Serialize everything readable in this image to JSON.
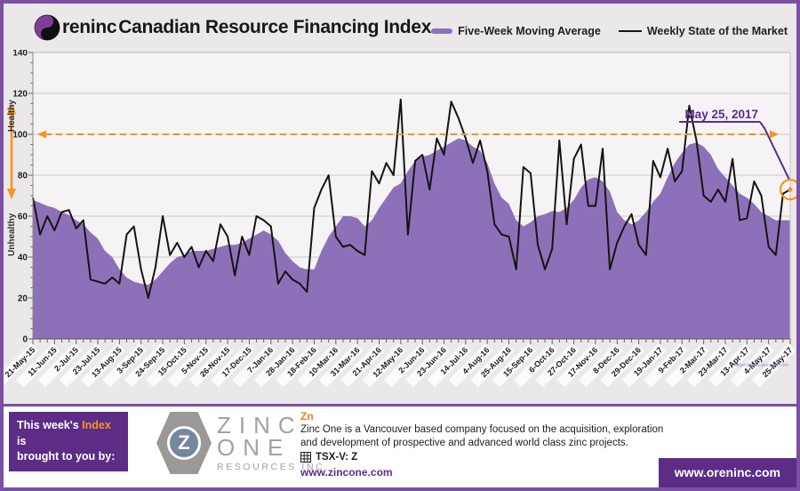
{
  "header": {
    "brand_suffix": "reninc",
    "title": " Canadian Resource Financing Index",
    "legend": [
      {
        "label": "Five-Week Moving Average",
        "color": "#8d71b8"
      },
      {
        "label": "Weekly State of the Market",
        "color": "#141414"
      }
    ]
  },
  "chart_data": {
    "type": "area",
    "title": "Oreninc Canadian Resource Financing Index",
    "ylim": [
      0,
      140
    ],
    "ytick_step": 20,
    "y_minor_step": 5,
    "grid": true,
    "weeks_per_tick": 3,
    "x_tick_labels": [
      "21-May-15",
      "11-Jun-15",
      "2-Jul-15",
      "23-Jul-15",
      "13-Aug-15",
      "3-Sep-15",
      "24-Sep-15",
      "15-Oct-15",
      "5-Nov-15",
      "26-Nov-15",
      "17-Dec-15",
      "7-Jan-16",
      "28-Jan-16",
      "18-Feb-16",
      "10-Mar-16",
      "31-Mar-16",
      "21-Apr-16",
      "12-May-16",
      "2-Jun-16",
      "23-Jun-16",
      "14-Jul-16",
      "4-Aug-16",
      "25-Aug-16",
      "15-Sep-16",
      "6-Oct-16",
      "27-Oct-16",
      "17-Nov-16",
      "8-Dec-16",
      "29-Dec-16",
      "19-Jan-17",
      "9-Feb-17",
      "2-Mar-17",
      "23-Mar-17",
      "13-Apr-17",
      "4-May-17",
      "25-May-17"
    ],
    "reference_line": {
      "value": 100,
      "color": "#f7941e",
      "style": "dashed"
    },
    "left_axis_labels": {
      "high": "Healthy",
      "low": "Unhealthy",
      "arrow_color": "#f7941e"
    },
    "series": [
      {
        "name": "Five-Week Moving Average",
        "type": "area",
        "color": "#8d71b8",
        "values": [
          68,
          66.5,
          65,
          64,
          62,
          60.5,
          58,
          56,
          52,
          49,
          43,
          40,
          34,
          30,
          28,
          27,
          26.5,
          29,
          33,
          37,
          40,
          41,
          43,
          43,
          43,
          44,
          45,
          46,
          46,
          47,
          49,
          51,
          53,
          51,
          48,
          42,
          38,
          35,
          34,
          34,
          43,
          50,
          55,
          60,
          60,
          59,
          55,
          58,
          64,
          69,
          74,
          76,
          82,
          87,
          89,
          90,
          92,
          94,
          96,
          98,
          97,
          94,
          92,
          86,
          76,
          69,
          66,
          58,
          55,
          57,
          60,
          61,
          62.5,
          62,
          64,
          68,
          74,
          78,
          79,
          77,
          72,
          62,
          58,
          56,
          58,
          62,
          67,
          71,
          79,
          86,
          91,
          95,
          96,
          94,
          90,
          83,
          79,
          75,
          71,
          69,
          66,
          62,
          60,
          58,
          58,
          58
        ]
      },
      {
        "name": "Weekly State of the Market",
        "type": "line",
        "color": "#141414",
        "values": [
          69,
          51,
          60,
          53,
          62,
          63,
          54,
          58,
          29,
          28,
          27,
          30,
          27,
          51,
          55,
          34,
          20,
          35,
          60,
          41,
          47,
          40,
          45,
          35,
          43,
          38,
          56,
          50,
          31,
          50,
          41,
          60,
          58,
          55,
          27,
          33,
          29,
          27,
          23,
          64,
          73,
          80,
          50,
          45,
          46,
          43,
          41,
          82,
          76,
          86,
          80,
          117,
          51,
          87,
          90,
          73,
          98,
          90,
          116,
          108,
          98,
          86,
          97,
          82,
          56,
          51,
          50,
          34,
          84,
          81,
          46,
          34,
          44,
          97,
          56,
          88,
          95,
          65,
          65,
          93,
          34,
          47,
          55,
          61,
          46,
          41,
          87,
          79,
          93,
          77,
          82,
          114,
          97,
          70,
          67,
          73,
          67,
          88,
          58,
          59,
          77,
          70,
          45,
          41,
          71,
          73
        ]
      }
    ],
    "annotation": {
      "label": "May 25, 2017",
      "week_index": 105,
      "value": 73,
      "color": "#5b2d8e",
      "highlight_color": "#f7941e"
    },
    "watermark": "https://www.zincone.com"
  },
  "footer": {
    "sponsor_intro": {
      "prefix": "This week's ",
      "highlight": "Index",
      "suffix": " is",
      "line2": "brought to you by:"
    },
    "zinc_logo": {
      "letter": "Z",
      "word1": "ZINC",
      "word2": "ONE",
      "word3": "RESOURCES INC."
    },
    "sponsor": {
      "symbol": "Zn",
      "description_line1": "Zinc One is a Vancouver based company focused on the acquisition, exploration",
      "description_line2": "and development of prospective and advanced world class zinc projects.",
      "ticker_label": "TSX-V:  Z",
      "website": "www.zincone.com"
    },
    "oreninc_site": "www.oreninc.com"
  }
}
